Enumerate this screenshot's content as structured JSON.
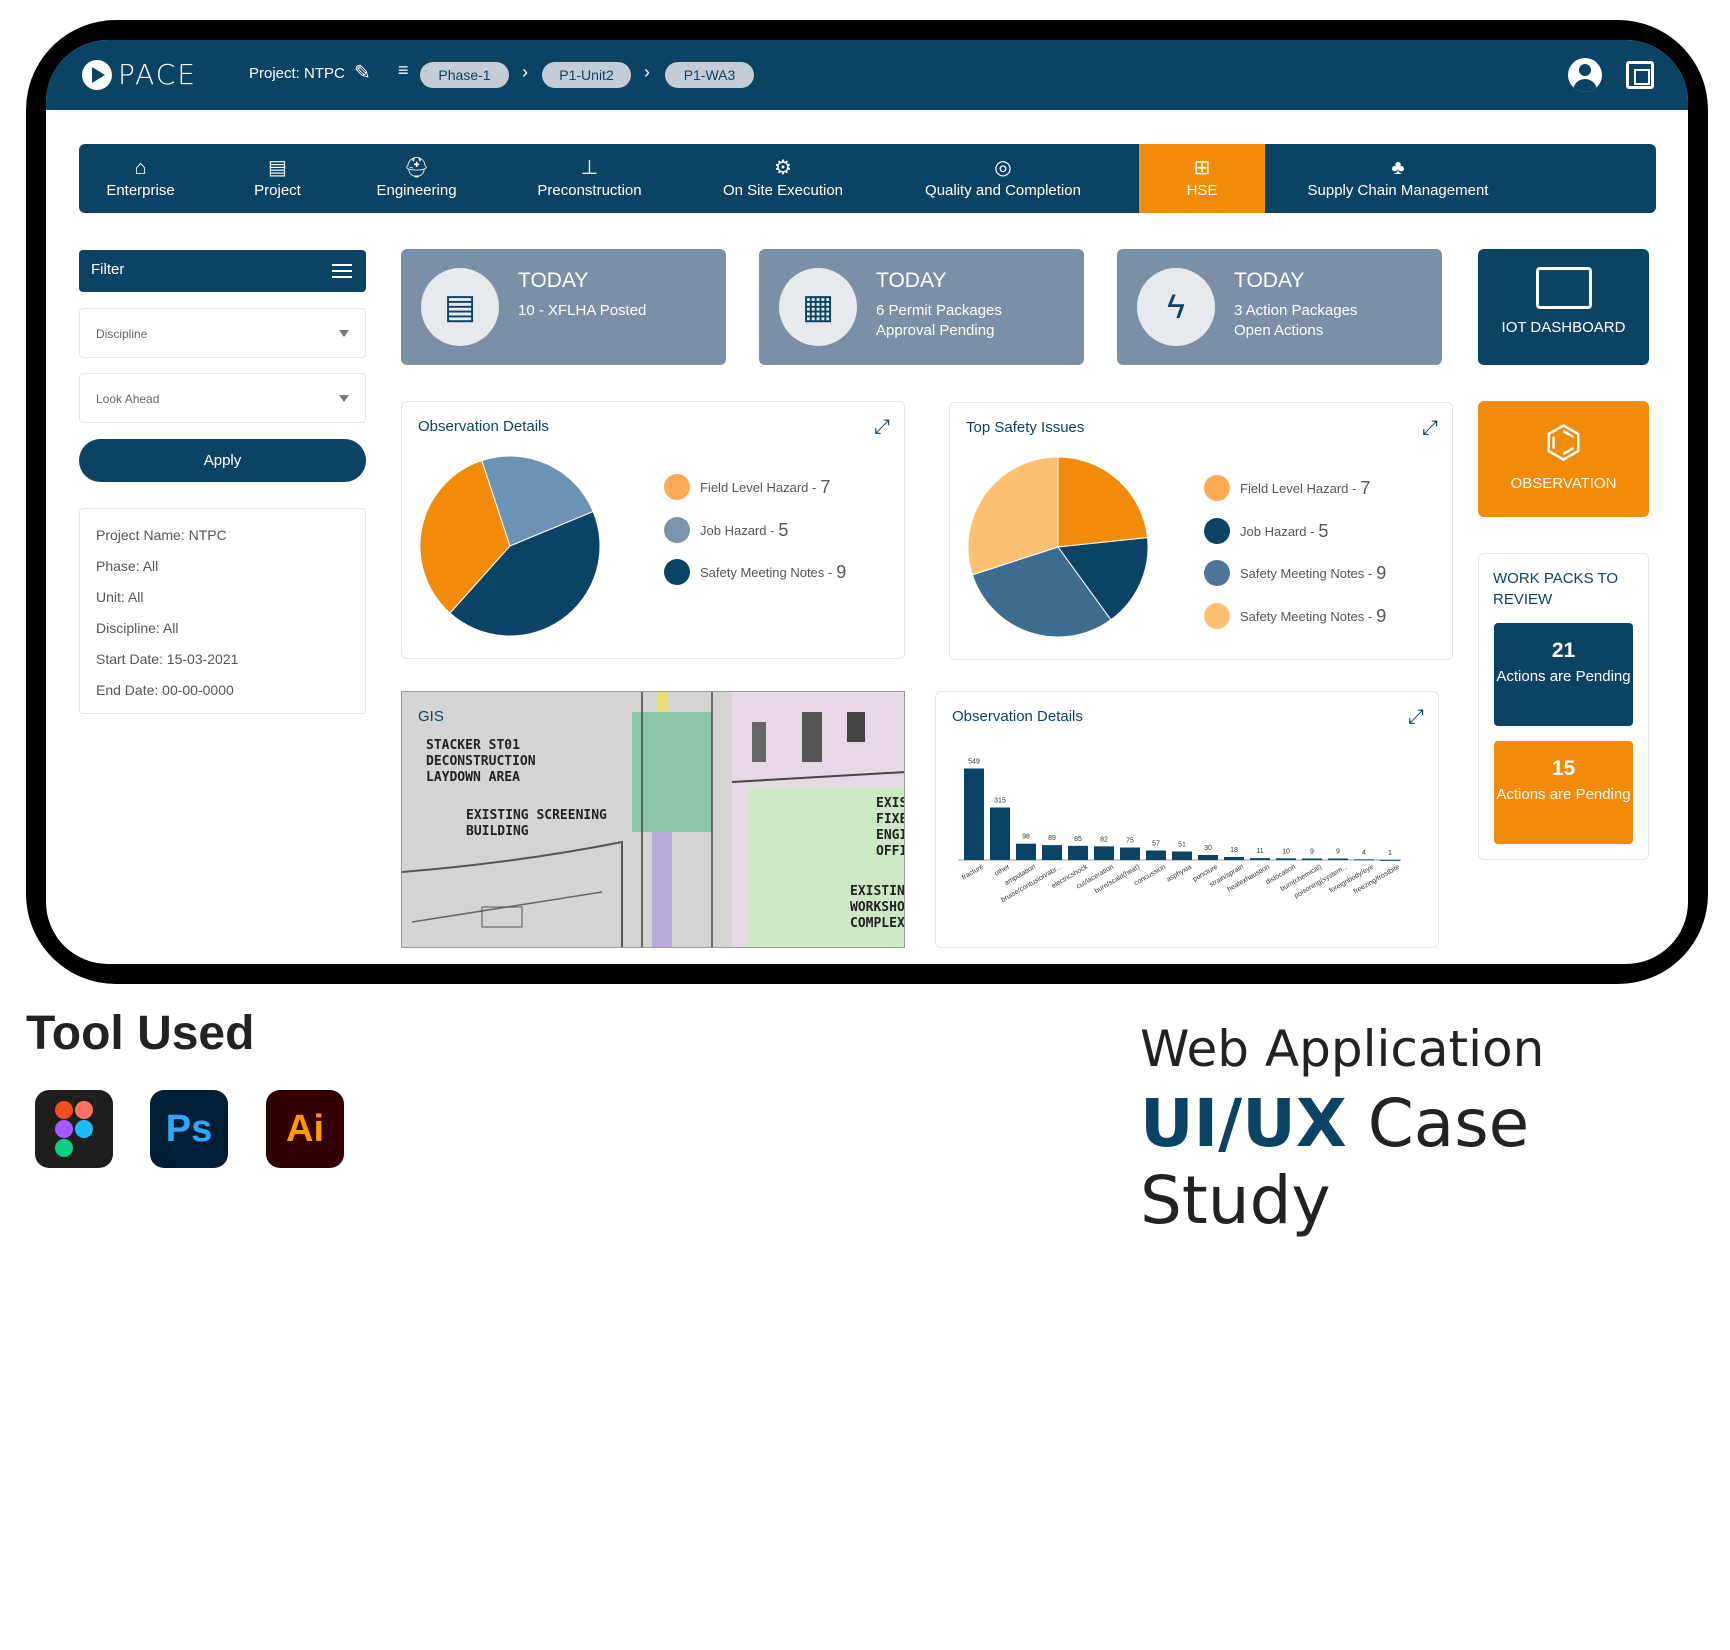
{
  "topbar": {
    "logo": "PACE",
    "project": "Project: NTPC",
    "crumbs": [
      "Phase-1",
      "P1-Unit2",
      "P1-WA3"
    ]
  },
  "nav": [
    {
      "label": "Enterprise",
      "icon": "enterprise-icon",
      "active": false
    },
    {
      "label": "Project",
      "icon": "document-icon",
      "active": false
    },
    {
      "label": "Engineering",
      "icon": "hardhat-icon",
      "active": false
    },
    {
      "label": "Preconstruction",
      "icon": "crane-icon",
      "active": false
    },
    {
      "label": "On Site Execution",
      "icon": "gear-icon",
      "active": false
    },
    {
      "label": "Quality and Completion",
      "icon": "check-circle-icon",
      "active": false
    },
    {
      "label": "HSE",
      "icon": "first-aid-icon",
      "active": true
    },
    {
      "label": "Supply Chain Management",
      "icon": "network-icon",
      "active": false
    }
  ],
  "sidebar": {
    "filter_label": "Filter",
    "discipline": "Discipline",
    "lookahead": "Look Ahead",
    "apply": "Apply",
    "info": [
      "Project Name: NTPC",
      "Phase: All",
      "Unit: All",
      "Discipline: All",
      "Start Date: 15-03-2021",
      "End Date: 00-00-0000"
    ]
  },
  "today": [
    {
      "title": "TODAY",
      "line1": "10 - XFLHA Posted",
      "line2": ""
    },
    {
      "title": "TODAY",
      "line1": "6 Permit Packages",
      "line2": "Approval Pending"
    },
    {
      "title": "TODAY",
      "line1": "3 Action Packages",
      "line2": "Open Actions"
    }
  ],
  "iot": "IOT DASHBOARD",
  "observation": "OBSERVATION",
  "obs_card": {
    "title": "Observation Details",
    "legend": [
      {
        "label": "Field Level Hazard - ",
        "value": "7"
      },
      {
        "label": "Job Hazard - ",
        "value": "5"
      },
      {
        "label": "Safety Meeting Notes - ",
        "value": "9"
      }
    ]
  },
  "safety_card": {
    "title": "Top Safety Issues",
    "legend": [
      {
        "label": "Field Level Hazard - ",
        "value": "7"
      },
      {
        "label": "Job Hazard - ",
        "value": "5"
      },
      {
        "label": "Safety Meeting Notes - ",
        "value": "9"
      },
      {
        "label": "Safety Meeting Notes - ",
        "value": "9"
      }
    ]
  },
  "gis": {
    "label": "GIS",
    "t1": "STACKER ST01\nDECONSTRUCTION\nLAYDOWN AREA",
    "t2": "EXISTING SCREENING\nBUILDING",
    "t3": "EXIST\nFIXED\nENGI\nOFFIC",
    "t4": "EXISTING F\nWORKSHOP\nCOMPLEX"
  },
  "bar_card": {
    "title": "Observation Details"
  },
  "work_packs": {
    "title": "WORK PACKS TO REVIEW",
    "a_num": "21",
    "a_text": "Actions are Pending",
    "b_num": "15",
    "b_text": "Actions are Pending"
  },
  "footer": {
    "tool": "Tool Used",
    "apps": [
      "",
      "Ps",
      "Ai"
    ],
    "web": "Web Application",
    "case_bold": "UI/UX",
    "case_rest": " Case Study"
  },
  "colors": {
    "navy": "#0b4364",
    "orange": "#f28a0a",
    "slate": "#7990a6",
    "light_orange": "#fdbf72",
    "mid_blue": "#3c6d8f",
    "grey_blue": "#7a95ad"
  },
  "chart_data": [
    {
      "type": "pie",
      "title": "Observation Details",
      "categories": [
        "Field Level Hazard",
        "Job Hazard",
        "Safety Meeting Notes"
      ],
      "values": [
        7,
        5,
        9
      ],
      "colors": [
        "#f28a0a",
        "#6c93b4",
        "#0b4364"
      ]
    },
    {
      "type": "pie",
      "title": "Top Safety Issues",
      "categories": [
        "Field Level Hazard",
        "Job Hazard",
        "Safety Meeting Notes",
        "Safety Meeting Notes"
      ],
      "values": [
        7,
        5,
        9,
        9
      ],
      "colors": [
        "#f28a0a",
        "#0b4364",
        "#3c6d8f",
        "#fdbf72"
      ]
    },
    {
      "type": "bar",
      "title": "Observation Details",
      "categories": [
        "fracture",
        "other",
        "amputation",
        "bruise/contusion/abr...",
        "electricshock",
        "cut/laceration",
        "burn/scald(heat)",
        "concussion",
        "asphyxia",
        "puncture",
        "strain/sprain",
        "heatexhaustion",
        "dislocation",
        "burn(chemical)",
        "poisoning(system...",
        "foreignbody/eye",
        "freezing/frostbite"
      ],
      "values": [
        549,
        315,
        98,
        89,
        85,
        82,
        75,
        57,
        51,
        30,
        18,
        11,
        10,
        9,
        9,
        4,
        1
      ]
    }
  ]
}
